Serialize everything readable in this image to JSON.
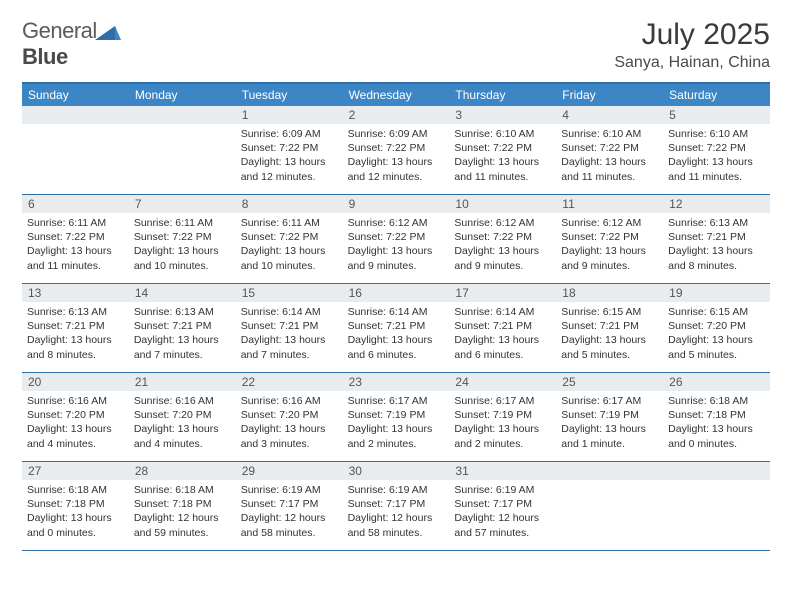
{
  "logo": {
    "word1": "General",
    "word2": "Blue"
  },
  "title": "July 2025",
  "location": "Sanya, Hainan, China",
  "colors": {
    "header_bg": "#3d86c6",
    "border": "#2f6fa8",
    "daynum_bg": "#e9ecef",
    "text": "#333333"
  },
  "day_names": [
    "Sunday",
    "Monday",
    "Tuesday",
    "Wednesday",
    "Thursday",
    "Friday",
    "Saturday"
  ],
  "weeks": [
    [
      {
        "n": "",
        "sr": "",
        "ss": "",
        "dl": ""
      },
      {
        "n": "",
        "sr": "",
        "ss": "",
        "dl": ""
      },
      {
        "n": "1",
        "sr": "Sunrise: 6:09 AM",
        "ss": "Sunset: 7:22 PM",
        "dl": "Daylight: 13 hours and 12 minutes."
      },
      {
        "n": "2",
        "sr": "Sunrise: 6:09 AM",
        "ss": "Sunset: 7:22 PM",
        "dl": "Daylight: 13 hours and 12 minutes."
      },
      {
        "n": "3",
        "sr": "Sunrise: 6:10 AM",
        "ss": "Sunset: 7:22 PM",
        "dl": "Daylight: 13 hours and 11 minutes."
      },
      {
        "n": "4",
        "sr": "Sunrise: 6:10 AM",
        "ss": "Sunset: 7:22 PM",
        "dl": "Daylight: 13 hours and 11 minutes."
      },
      {
        "n": "5",
        "sr": "Sunrise: 6:10 AM",
        "ss": "Sunset: 7:22 PM",
        "dl": "Daylight: 13 hours and 11 minutes."
      }
    ],
    [
      {
        "n": "6",
        "sr": "Sunrise: 6:11 AM",
        "ss": "Sunset: 7:22 PM",
        "dl": "Daylight: 13 hours and 11 minutes."
      },
      {
        "n": "7",
        "sr": "Sunrise: 6:11 AM",
        "ss": "Sunset: 7:22 PM",
        "dl": "Daylight: 13 hours and 10 minutes."
      },
      {
        "n": "8",
        "sr": "Sunrise: 6:11 AM",
        "ss": "Sunset: 7:22 PM",
        "dl": "Daylight: 13 hours and 10 minutes."
      },
      {
        "n": "9",
        "sr": "Sunrise: 6:12 AM",
        "ss": "Sunset: 7:22 PM",
        "dl": "Daylight: 13 hours and 9 minutes."
      },
      {
        "n": "10",
        "sr": "Sunrise: 6:12 AM",
        "ss": "Sunset: 7:22 PM",
        "dl": "Daylight: 13 hours and 9 minutes."
      },
      {
        "n": "11",
        "sr": "Sunrise: 6:12 AM",
        "ss": "Sunset: 7:22 PM",
        "dl": "Daylight: 13 hours and 9 minutes."
      },
      {
        "n": "12",
        "sr": "Sunrise: 6:13 AM",
        "ss": "Sunset: 7:21 PM",
        "dl": "Daylight: 13 hours and 8 minutes."
      }
    ],
    [
      {
        "n": "13",
        "sr": "Sunrise: 6:13 AM",
        "ss": "Sunset: 7:21 PM",
        "dl": "Daylight: 13 hours and 8 minutes."
      },
      {
        "n": "14",
        "sr": "Sunrise: 6:13 AM",
        "ss": "Sunset: 7:21 PM",
        "dl": "Daylight: 13 hours and 7 minutes."
      },
      {
        "n": "15",
        "sr": "Sunrise: 6:14 AM",
        "ss": "Sunset: 7:21 PM",
        "dl": "Daylight: 13 hours and 7 minutes."
      },
      {
        "n": "16",
        "sr": "Sunrise: 6:14 AM",
        "ss": "Sunset: 7:21 PM",
        "dl": "Daylight: 13 hours and 6 minutes."
      },
      {
        "n": "17",
        "sr": "Sunrise: 6:14 AM",
        "ss": "Sunset: 7:21 PM",
        "dl": "Daylight: 13 hours and 6 minutes."
      },
      {
        "n": "18",
        "sr": "Sunrise: 6:15 AM",
        "ss": "Sunset: 7:21 PM",
        "dl": "Daylight: 13 hours and 5 minutes."
      },
      {
        "n": "19",
        "sr": "Sunrise: 6:15 AM",
        "ss": "Sunset: 7:20 PM",
        "dl": "Daylight: 13 hours and 5 minutes."
      }
    ],
    [
      {
        "n": "20",
        "sr": "Sunrise: 6:16 AM",
        "ss": "Sunset: 7:20 PM",
        "dl": "Daylight: 13 hours and 4 minutes."
      },
      {
        "n": "21",
        "sr": "Sunrise: 6:16 AM",
        "ss": "Sunset: 7:20 PM",
        "dl": "Daylight: 13 hours and 4 minutes."
      },
      {
        "n": "22",
        "sr": "Sunrise: 6:16 AM",
        "ss": "Sunset: 7:20 PM",
        "dl": "Daylight: 13 hours and 3 minutes."
      },
      {
        "n": "23",
        "sr": "Sunrise: 6:17 AM",
        "ss": "Sunset: 7:19 PM",
        "dl": "Daylight: 13 hours and 2 minutes."
      },
      {
        "n": "24",
        "sr": "Sunrise: 6:17 AM",
        "ss": "Sunset: 7:19 PM",
        "dl": "Daylight: 13 hours and 2 minutes."
      },
      {
        "n": "25",
        "sr": "Sunrise: 6:17 AM",
        "ss": "Sunset: 7:19 PM",
        "dl": "Daylight: 13 hours and 1 minute."
      },
      {
        "n": "26",
        "sr": "Sunrise: 6:18 AM",
        "ss": "Sunset: 7:18 PM",
        "dl": "Daylight: 13 hours and 0 minutes."
      }
    ],
    [
      {
        "n": "27",
        "sr": "Sunrise: 6:18 AM",
        "ss": "Sunset: 7:18 PM",
        "dl": "Daylight: 13 hours and 0 minutes."
      },
      {
        "n": "28",
        "sr": "Sunrise: 6:18 AM",
        "ss": "Sunset: 7:18 PM",
        "dl": "Daylight: 12 hours and 59 minutes."
      },
      {
        "n": "29",
        "sr": "Sunrise: 6:19 AM",
        "ss": "Sunset: 7:17 PM",
        "dl": "Daylight: 12 hours and 58 minutes."
      },
      {
        "n": "30",
        "sr": "Sunrise: 6:19 AM",
        "ss": "Sunset: 7:17 PM",
        "dl": "Daylight: 12 hours and 58 minutes."
      },
      {
        "n": "31",
        "sr": "Sunrise: 6:19 AM",
        "ss": "Sunset: 7:17 PM",
        "dl": "Daylight: 12 hours and 57 minutes."
      },
      {
        "n": "",
        "sr": "",
        "ss": "",
        "dl": ""
      },
      {
        "n": "",
        "sr": "",
        "ss": "",
        "dl": ""
      }
    ]
  ]
}
